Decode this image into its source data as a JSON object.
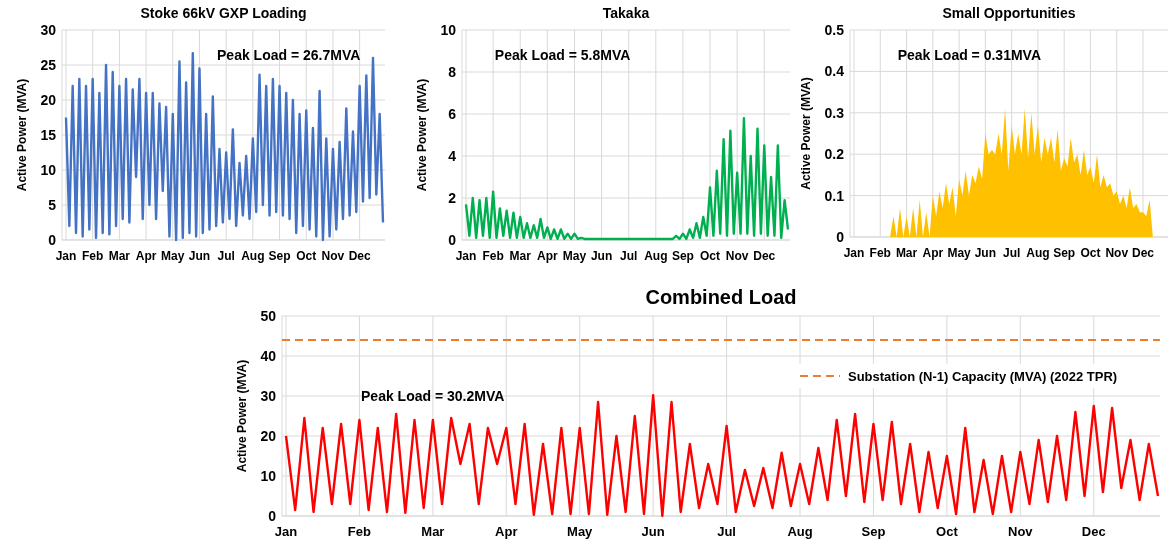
{
  "chart_data": [
    {
      "type": "line",
      "title": "Stoke 66kV GXP Loading",
      "ylabel": "Active Power (MVA)",
      "annotations": [
        "Peak Load = 26.7MVA"
      ],
      "grid": true,
      "categories": [
        "Jan",
        null,
        null,
        null,
        null,
        null,
        null,
        null,
        "Feb",
        null,
        null,
        null,
        null,
        null,
        null,
        null,
        "Mar",
        null,
        null,
        null,
        null,
        null,
        null,
        null,
        "Apr",
        null,
        null,
        null,
        null,
        null,
        null,
        null,
        "May",
        null,
        null,
        null,
        null,
        null,
        null,
        null,
        "Jun",
        null,
        null,
        null,
        null,
        null,
        null,
        null,
        "Jul",
        null,
        null,
        null,
        null,
        null,
        null,
        null,
        "Aug",
        null,
        null,
        null,
        null,
        null,
        null,
        null,
        "Sep",
        null,
        null,
        null,
        null,
        null,
        null,
        null,
        "Oct",
        null,
        null,
        null,
        null,
        null,
        null,
        null,
        "Nov",
        null,
        null,
        null,
        null,
        null,
        null,
        null,
        "Dec",
        null,
        null,
        null,
        null,
        null,
        null,
        null
      ],
      "series": [
        {
          "color": "#4472c4",
          "values": [
            17.5,
            2,
            22,
            1,
            23,
            0.5,
            22,
            1.5,
            23,
            0.3,
            21,
            1,
            25,
            0.8,
            24,
            2,
            22,
            3,
            23,
            2.5,
            21.5,
            9,
            23,
            3,
            21,
            5,
            21,
            3,
            19.5,
            7,
            19,
            0.5,
            18,
            0,
            25.5,
            0.3,
            22.5,
            1,
            26.7,
            0.5,
            24.5,
            1,
            18,
            1.5,
            20.5,
            2,
            13,
            2.5,
            12.5,
            3,
            15.8,
            2,
            11,
            3.5,
            12,
            3,
            14.5,
            4,
            23.6,
            5,
            22,
            3.5,
            23,
            4,
            22,
            3.5,
            21,
            3,
            20,
            1,
            18,
            2,
            18.5,
            1.5,
            16,
            0.5,
            21.3,
            0,
            14.5,
            0.5,
            13,
            1.5,
            14,
            3,
            18.8,
            3.5,
            15.5,
            4,
            22,
            5.5,
            23.5,
            6,
            26,
            6.5,
            18,
            2.5
          ]
        }
      ],
      "ylim": [
        0,
        30
      ],
      "yticks": [
        0,
        5,
        10,
        15,
        20,
        25,
        30
      ]
    },
    {
      "type": "line",
      "title": "Takaka",
      "ylabel": "Active Power (MVA)",
      "annotations": [
        "Peak Load = 5.8MVA"
      ],
      "grid": true,
      "categories": [
        "Jan",
        null,
        null,
        null,
        null,
        null,
        null,
        null,
        "Feb",
        null,
        null,
        null,
        null,
        null,
        null,
        null,
        "Mar",
        null,
        null,
        null,
        null,
        null,
        null,
        null,
        "Apr",
        null,
        null,
        null,
        null,
        null,
        null,
        null,
        "May",
        null,
        null,
        null,
        null,
        null,
        null,
        null,
        "Jun",
        null,
        null,
        null,
        null,
        null,
        null,
        null,
        "Jul",
        null,
        null,
        null,
        null,
        null,
        null,
        null,
        "Aug",
        null,
        null,
        null,
        null,
        null,
        null,
        null,
        "Sep",
        null,
        null,
        null,
        null,
        null,
        null,
        null,
        "Oct",
        null,
        null,
        null,
        null,
        null,
        null,
        null,
        "Nov",
        null,
        null,
        null,
        null,
        null,
        null,
        null,
        "Dec",
        null,
        null,
        null,
        null,
        null,
        null,
        null
      ],
      "series": [
        {
          "color": "#00b050",
          "values": [
            1.7,
            0.2,
            2,
            0.1,
            1.9,
            0.2,
            2,
            0.1,
            2.3,
            0.1,
            1.5,
            0.2,
            1.4,
            0.1,
            1.3,
            0.1,
            1.1,
            0.1,
            0.8,
            0.1,
            0.7,
            0.1,
            1,
            0.1,
            0.6,
            0.05,
            0.5,
            0.05,
            0.5,
            0.05,
            0.3,
            0.05,
            0.3,
            0.05,
            0.1,
            0.05,
            0.05,
            0.05,
            0.05,
            0.05,
            0.05,
            0.05,
            0.05,
            0.05,
            0.05,
            0.05,
            0.05,
            0.05,
            0.05,
            0.05,
            0.05,
            0.05,
            0.05,
            0.05,
            0.05,
            0.05,
            0.05,
            0.05,
            0.05,
            0.05,
            0.05,
            0.05,
            0.2,
            0.05,
            0.3,
            0.05,
            0.5,
            0.1,
            0.8,
            0.1,
            1.1,
            0.2,
            2.5,
            0.2,
            3.3,
            0.3,
            4.8,
            0.2,
            5.2,
            0.3,
            3.2,
            0.3,
            5.8,
            0.3,
            4,
            0.2,
            5.3,
            0.3,
            4.5,
            0.2,
            3,
            0.2,
            4.5,
            0.1,
            1.9,
            0.5
          ]
        }
      ],
      "ylim": [
        0,
        10
      ],
      "yticks": [
        0,
        2,
        4,
        6,
        8,
        10
      ]
    },
    {
      "type": "area",
      "title": "Small Opportunities",
      "ylabel": "Active Power (MVA)",
      "annotations": [
        "Peak Load = 0.31MVA"
      ],
      "grid": true,
      "categories": [
        "Jan",
        null,
        null,
        null,
        null,
        null,
        null,
        null,
        "Feb",
        null,
        null,
        null,
        null,
        null,
        null,
        null,
        "Mar",
        null,
        null,
        null,
        null,
        null,
        null,
        null,
        "Apr",
        null,
        null,
        null,
        null,
        null,
        null,
        null,
        "May",
        null,
        null,
        null,
        null,
        null,
        null,
        null,
        "Jun",
        null,
        null,
        null,
        null,
        null,
        null,
        null,
        "Jul",
        null,
        null,
        null,
        null,
        null,
        null,
        null,
        "Aug",
        null,
        null,
        null,
        null,
        null,
        null,
        null,
        "Sep",
        null,
        null,
        null,
        null,
        null,
        null,
        null,
        "Oct",
        null,
        null,
        null,
        null,
        null,
        null,
        null,
        "Nov",
        null,
        null,
        null,
        null,
        null,
        null,
        null,
        "Dec",
        null,
        null,
        null,
        null,
        null,
        null,
        null
      ],
      "series": [
        {
          "color": "#ffc000",
          "values": [
            0,
            0,
            0,
            0,
            0,
            0,
            0,
            0,
            0,
            0,
            0,
            0,
            0.05,
            0,
            0.07,
            0,
            0.05,
            0,
            0.07,
            0,
            0.09,
            0,
            0.06,
            0,
            0.1,
            0.05,
            0.11,
            0.07,
            0.13,
            0.08,
            0.12,
            0.05,
            0.14,
            0.1,
            0.16,
            0.1,
            0.15,
            0.13,
            0.17,
            0.14,
            0.25,
            0.2,
            0.21,
            0.2,
            0.25,
            0.2,
            0.31,
            0.16,
            0.27,
            0.2,
            0.25,
            0.2,
            0.31,
            0.19,
            0.3,
            0.2,
            0.27,
            0.18,
            0.24,
            0.2,
            0.24,
            0.18,
            0.26,
            0.16,
            0.19,
            0.17,
            0.24,
            0.18,
            0.2,
            0.15,
            0.21,
            0.15,
            0.17,
            0.13,
            0.2,
            0.12,
            0.15,
            0.12,
            0.13,
            0.1,
            0.11,
            0.08,
            0.1,
            0.07,
            0.12,
            0.07,
            0.08,
            0.06,
            0.06,
            0.05,
            0.09,
            0,
            0,
            0,
            0,
            0
          ]
        }
      ],
      "ylim": [
        0,
        0.5
      ],
      "yticks": [
        0,
        0.1,
        0.2,
        0.3,
        0.4,
        0.5
      ]
    },
    {
      "type": "line",
      "title": "Combined Load",
      "ylabel": "Active Power (MVA)",
      "annotations": [
        "Peak Load = 30.2MVA"
      ],
      "grid": true,
      "legend": "top right",
      "categories": [
        "Jan",
        null,
        null,
        null,
        null,
        null,
        null,
        null,
        "Feb",
        null,
        null,
        null,
        null,
        null,
        null,
        null,
        "Mar",
        null,
        null,
        null,
        null,
        null,
        null,
        null,
        "Apr",
        null,
        null,
        null,
        null,
        null,
        null,
        null,
        "May",
        null,
        null,
        null,
        null,
        null,
        null,
        null,
        "Jun",
        null,
        null,
        null,
        null,
        null,
        null,
        null,
        "Jul",
        null,
        null,
        null,
        null,
        null,
        null,
        null,
        "Aug",
        null,
        null,
        null,
        null,
        null,
        null,
        null,
        "Sep",
        null,
        null,
        null,
        null,
        null,
        null,
        null,
        "Oct",
        null,
        null,
        null,
        null,
        null,
        null,
        null,
        "Nov",
        null,
        null,
        null,
        null,
        null,
        null,
        null,
        "Dec",
        null,
        null,
        null,
        null,
        null,
        null,
        null
      ],
      "series": [
        {
          "color": "#ff0000",
          "values": [
            20,
            1.5,
            24.5,
            1,
            22,
            3,
            23,
            3,
            24,
            1.5,
            22,
            1,
            25.5,
            0.8,
            24,
            2,
            24,
            3,
            24.5,
            13,
            23,
            3,
            22,
            13,
            22,
            3,
            23,
            0.3,
            18,
            0.5,
            22,
            0.5,
            22,
            0.5,
            28.5,
            0.3,
            20,
            1,
            25,
            0.5,
            30.2,
            0,
            28.5,
            1,
            18,
            2,
            13,
            3,
            22.5,
            1,
            11.5,
            2.5,
            12,
            2,
            15.8,
            2.5,
            13,
            3,
            17,
            4,
            24,
            5,
            25.5,
            3.5,
            23,
            4,
            23.5,
            3,
            18,
            1,
            16,
            2,
            15,
            0.5,
            22,
            1,
            14,
            0.5,
            15,
            1,
            16,
            3,
            19,
            3.5,
            20,
            4,
            26,
            5,
            27.5,
            6,
            27,
            7,
            19,
            4,
            18,
            5
          ]
        }
      ],
      "ref_lines": [
        {
          "axis": "y",
          "value": 44,
          "label": "Substation (N-1) Capacity (MVA) (2022 TPR)",
          "color": "#ed7d31",
          "line_style": "dashed"
        }
      ],
      "ylim": [
        0,
        50
      ],
      "yticks": [
        0,
        10,
        20,
        30,
        40,
        50
      ]
    }
  ]
}
